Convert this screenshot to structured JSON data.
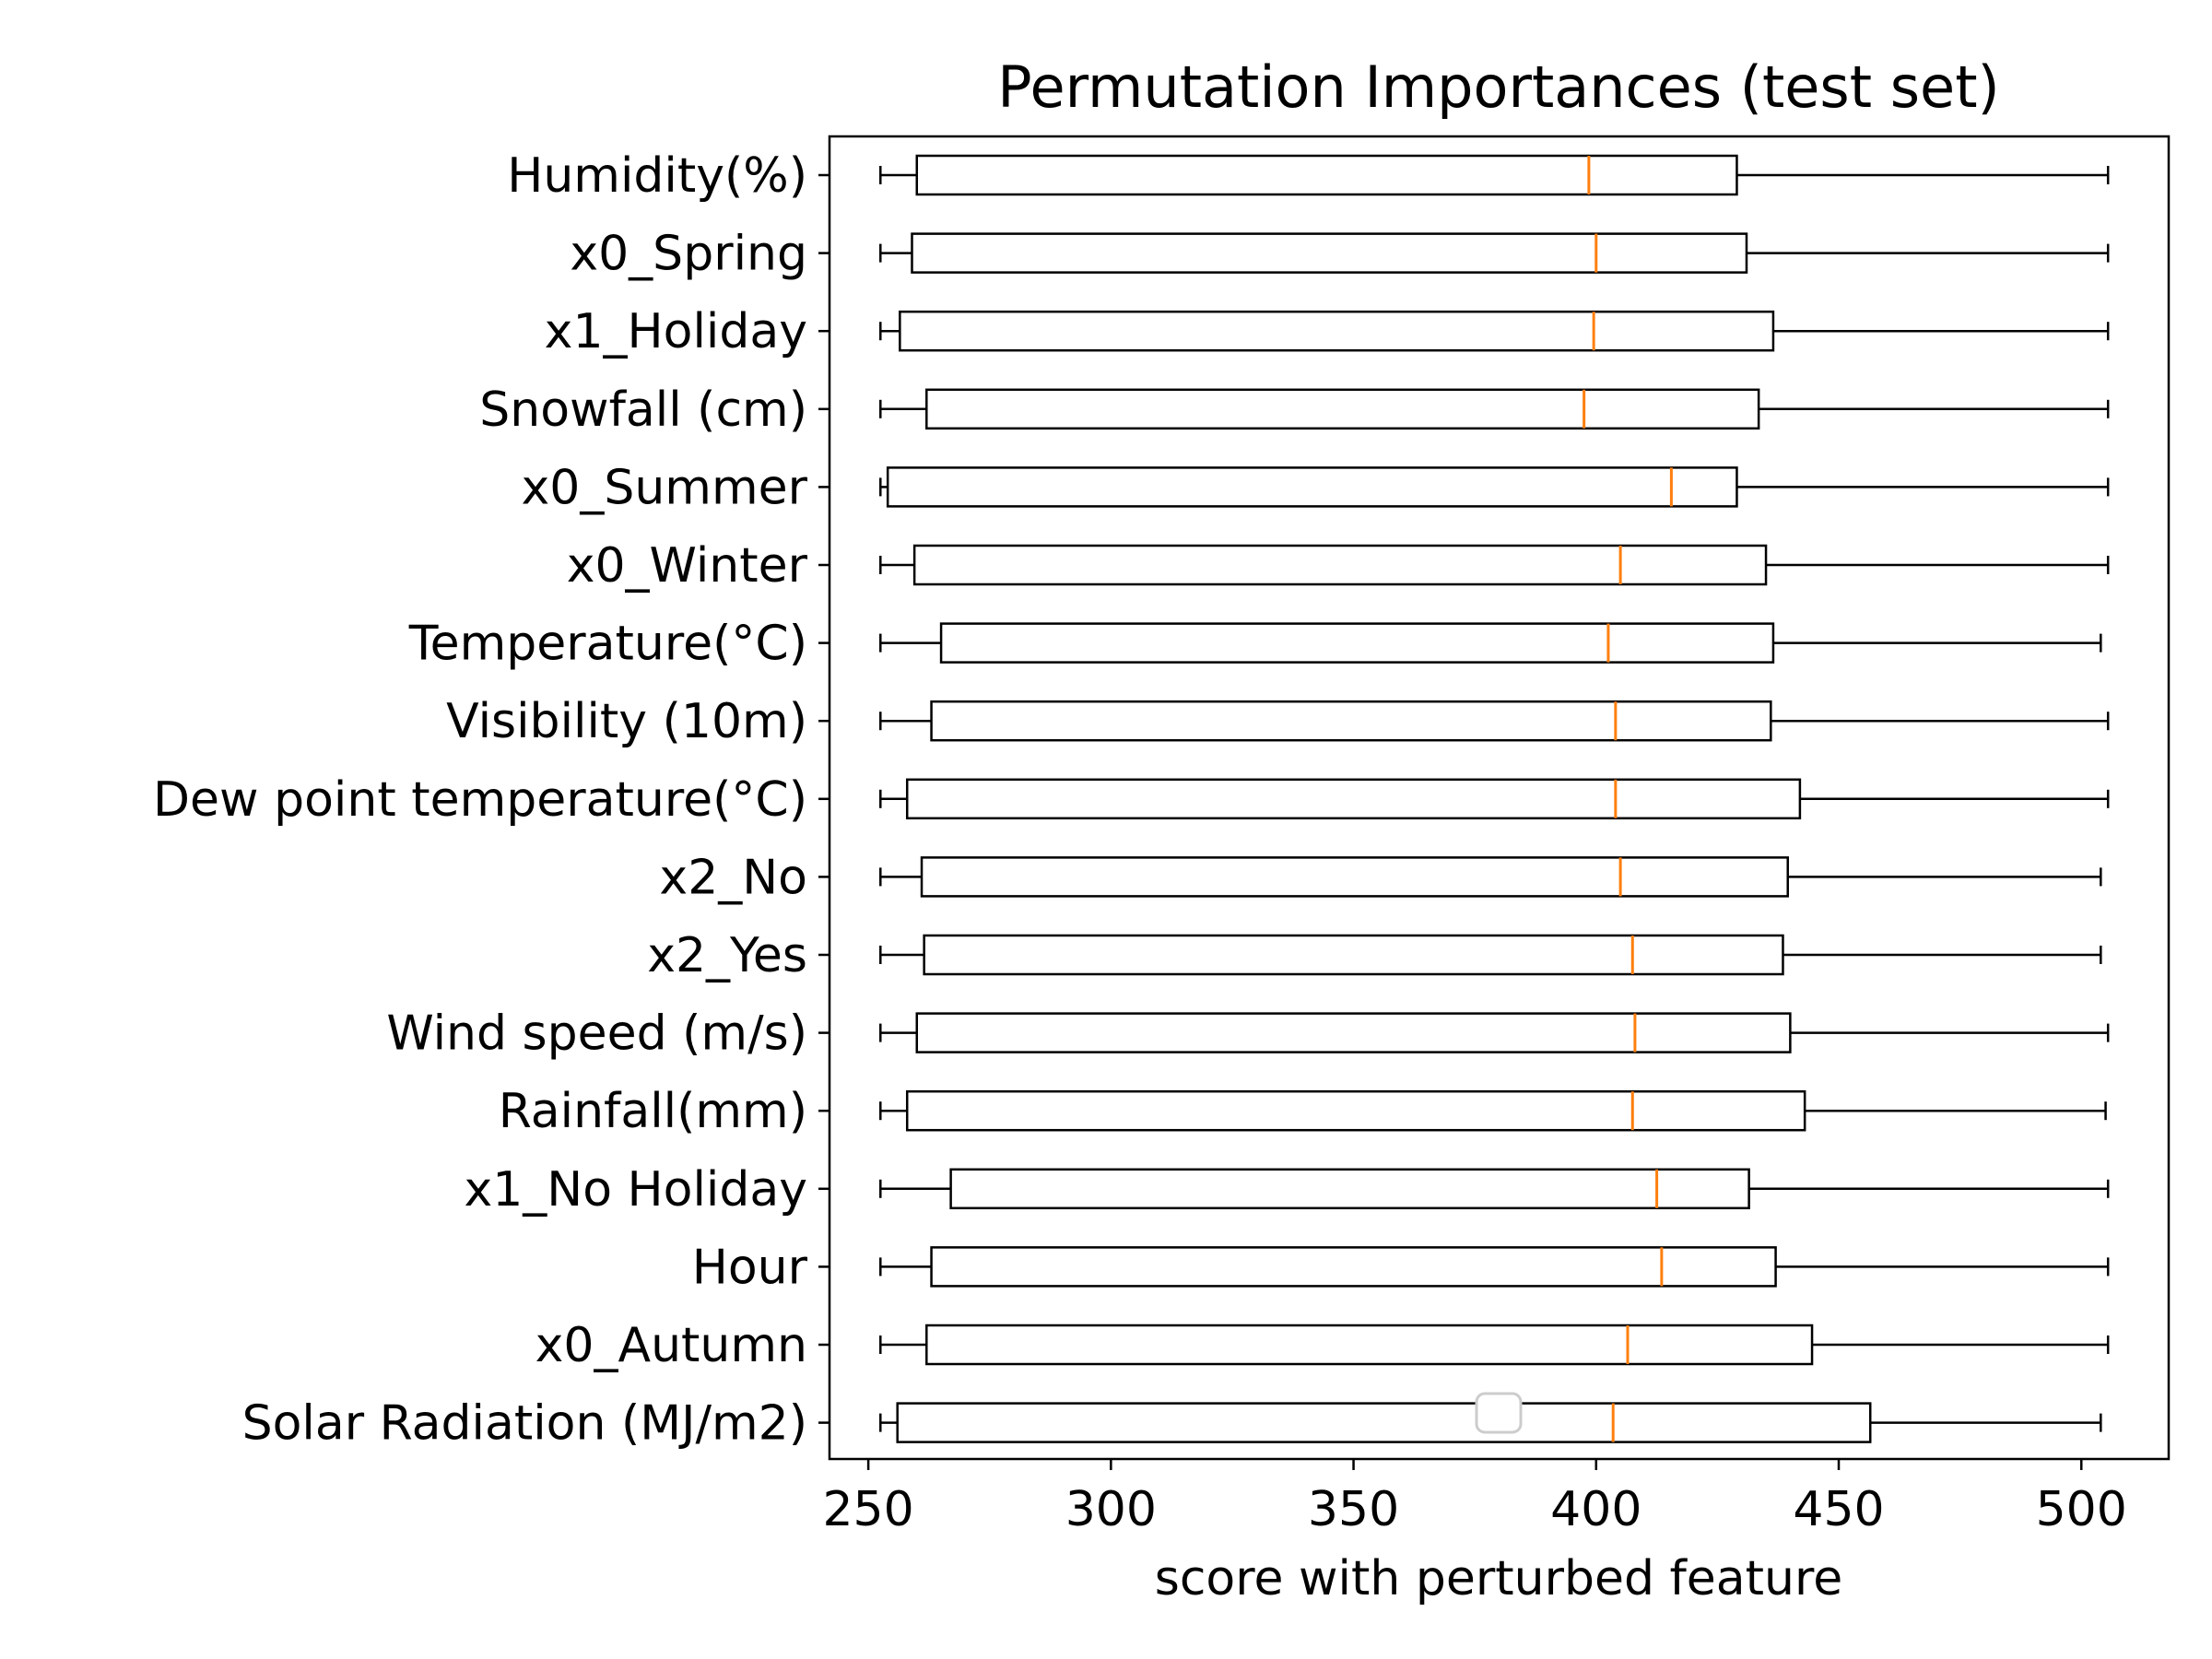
{
  "chart_data": {
    "type": "boxplot",
    "orientation": "horizontal",
    "title": "Permutation Importances (test set)",
    "xlabel": "score with perturbed feature",
    "ylabel": "",
    "xlim": [
      242,
      518
    ],
    "xticks": [
      250,
      300,
      350,
      400,
      450,
      500
    ],
    "grid": false,
    "legend": "empty legend box near bottom-center",
    "colors": {
      "box": "#000000",
      "median": "#ff7f0e",
      "legend_frame": "#cccccc"
    },
    "categories": [
      "Humidity(%)",
      "x0_Spring",
      "x1_Holiday",
      "Snowfall (cm)",
      "x0_Summer",
      "x0_Winter",
      "Temperature(°C)",
      "Visibility (10m)",
      "Dew point temperature(°C)",
      "x2_No",
      "x2_Yes",
      "Wind speed (m/s)",
      "Rainfall(mm)",
      "x1_No Holiday",
      "Hour",
      "x0_Autumn",
      "Solar Radiation (MJ/m2)"
    ],
    "boxes": [
      {
        "whislo": 252.5,
        "q1": 260,
        "med": 398.5,
        "q3": 429,
        "whishi": 505.5
      },
      {
        "whislo": 252.5,
        "q1": 259,
        "med": 400,
        "q3": 431,
        "whishi": 505.5
      },
      {
        "whislo": 252.5,
        "q1": 256.5,
        "med": 399.5,
        "q3": 436.5,
        "whishi": 505.5
      },
      {
        "whislo": 252.5,
        "q1": 262,
        "med": 397.5,
        "q3": 433.5,
        "whishi": 505.5
      },
      {
        "whislo": 252.5,
        "q1": 254,
        "med": 415.5,
        "q3": 429,
        "whishi": 505.5
      },
      {
        "whislo": 252.5,
        "q1": 259.5,
        "med": 405,
        "q3": 435,
        "whishi": 505.5
      },
      {
        "whislo": 252.5,
        "q1": 265,
        "med": 402.5,
        "q3": 436.5,
        "whishi": 504
      },
      {
        "whislo": 252.5,
        "q1": 263,
        "med": 404,
        "q3": 436,
        "whishi": 505.5
      },
      {
        "whislo": 252.5,
        "q1": 258,
        "med": 404,
        "q3": 442,
        "whishi": 505.5
      },
      {
        "whislo": 252.5,
        "q1": 261,
        "med": 405,
        "q3": 439.5,
        "whishi": 504
      },
      {
        "whislo": 252.5,
        "q1": 261.5,
        "med": 407.5,
        "q3": 438.5,
        "whishi": 504
      },
      {
        "whislo": 252.5,
        "q1": 260,
        "med": 408,
        "q3": 440,
        "whishi": 505.5
      },
      {
        "whislo": 252.5,
        "q1": 258,
        "med": 407.5,
        "q3": 443,
        "whishi": 505
      },
      {
        "whislo": 252.5,
        "q1": 267,
        "med": 412.5,
        "q3": 431.5,
        "whishi": 505.5
      },
      {
        "whislo": 252.5,
        "q1": 263,
        "med": 413.5,
        "q3": 437,
        "whishi": 505.5
      },
      {
        "whislo": 252.5,
        "q1": 262,
        "med": 406.5,
        "q3": 444.5,
        "whishi": 505.5
      },
      {
        "whislo": 252.5,
        "q1": 256,
        "med": 403.5,
        "q3": 456.5,
        "whishi": 504
      }
    ]
  }
}
